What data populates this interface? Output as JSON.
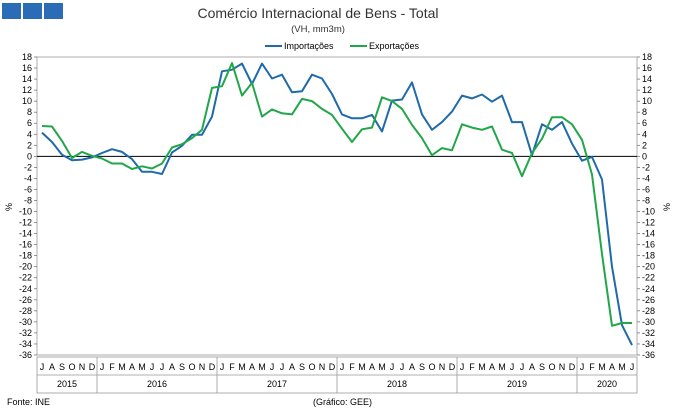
{
  "logo": {
    "color": "#2a6cb5",
    "blocks": 3,
    "icon": "ine-logo-icon"
  },
  "footer": {
    "source": "Fonte: INE",
    "credit": "(Gráfico: GEE)"
  },
  "colors": {
    "imports": "#1f6aa8",
    "exports": "#22a64a"
  },
  "chart_data": {
    "type": "line",
    "title": "Comércio Internacional de Bens - Total",
    "subtitle": "(VH, mm3m)",
    "ylabel_left": "%",
    "ylabel_right": "%",
    "ylim": [
      -36,
      18
    ],
    "ytick_step": 2,
    "grid": "horizontal-zero-line",
    "legend_position": "top-center",
    "month_labels": [
      "J",
      "A",
      "S",
      "O",
      "N",
      "D",
      "J",
      "F",
      "M",
      "A",
      "M",
      "J",
      "J",
      "A",
      "S",
      "O",
      "N",
      "D",
      "J",
      "F",
      "M",
      "A",
      "M",
      "J",
      "J",
      "A",
      "S",
      "O",
      "N",
      "D",
      "J",
      "F",
      "M",
      "A",
      "M",
      "J",
      "J",
      "A",
      "S",
      "O",
      "N",
      "D",
      "J",
      "F",
      "M",
      "A",
      "M",
      "J",
      "J",
      "A",
      "S",
      "O",
      "N",
      "D",
      "J",
      "F",
      "M",
      "A",
      "M",
      "J"
    ],
    "years": [
      {
        "label": "2015",
        "start": 0,
        "count": 6
      },
      {
        "label": "2016",
        "start": 6,
        "count": 12
      },
      {
        "label": "2017",
        "start": 18,
        "count": 12
      },
      {
        "label": "2018",
        "start": 30,
        "count": 12
      },
      {
        "label": "2019",
        "start": 42,
        "count": 12
      },
      {
        "label": "2020",
        "start": 54,
        "count": 6
      }
    ],
    "series": [
      {
        "name": "Importações",
        "values": [
          4.3,
          2.6,
          0.3,
          -0.7,
          -0.6,
          -0.2,
          0.6,
          1.3,
          0.8,
          -0.5,
          -2.8,
          -2.8,
          -3.2,
          0.7,
          1.9,
          3.9,
          3.9,
          7.2,
          15.4,
          15.7,
          16.8,
          13.1,
          16.8,
          14.1,
          14.8,
          11.6,
          11.8,
          14.8,
          14.1,
          11.3,
          7.6,
          6.9,
          6.9,
          7.5,
          4.5,
          10.1,
          10.3,
          13.4,
          7.6,
          4.8,
          6.2,
          8.1,
          11.0,
          10.5,
          11.2,
          9.9,
          11.0,
          6.2,
          6.2,
          0.2,
          5.8,
          4.8,
          6.2,
          2.3,
          -0.8,
          -0.1,
          -4.2,
          -20.0,
          -30.6,
          -34.2
        ]
      },
      {
        "name": "Exportações",
        "values": [
          5.5,
          5.4,
          2.8,
          -0.3,
          0.8,
          0.1,
          -0.4,
          -1.3,
          -1.3,
          -2.3,
          -1.8,
          -2.2,
          -1.3,
          1.6,
          2.2,
          3.3,
          4.8,
          12.4,
          12.7,
          16.9,
          11.0,
          13.3,
          7.2,
          8.5,
          7.8,
          7.6,
          10.4,
          10.0,
          8.6,
          7.5,
          5.0,
          2.6,
          4.9,
          5.2,
          10.7,
          10.0,
          8.6,
          5.7,
          3.3,
          0.2,
          1.5,
          1.1,
          5.8,
          5.2,
          4.8,
          5.4,
          1.2,
          0.6,
          -3.6,
          0.6,
          3.2,
          7.1,
          7.1,
          5.8,
          3.0,
          -3.3,
          -17.7,
          -30.7,
          -30.2,
          -30.2
        ]
      }
    ]
  }
}
